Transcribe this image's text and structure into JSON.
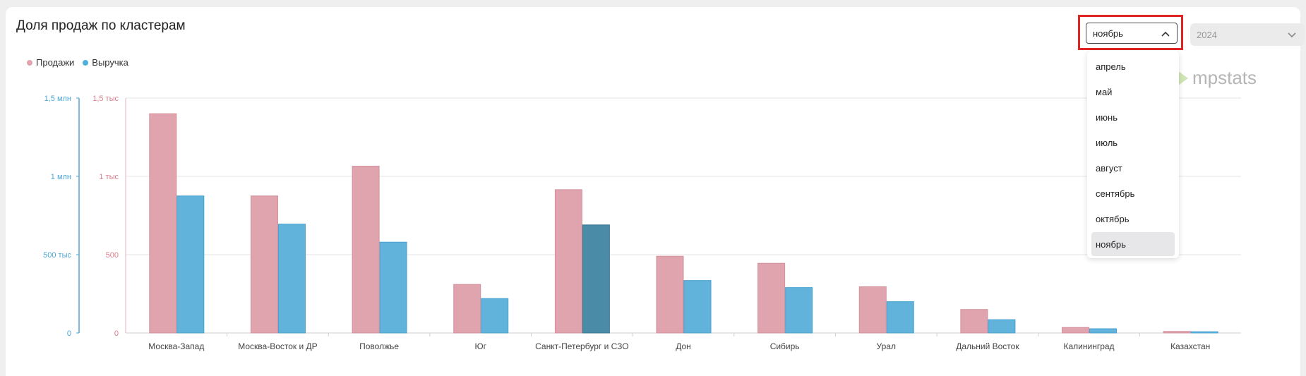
{
  "header": {
    "title": "Доля продаж по кластерам"
  },
  "legend": [
    {
      "label": "Продажи",
      "color": "#e0a4ae"
    },
    {
      "label": "Выручка",
      "color": "#4fb0dc"
    }
  ],
  "logo": {
    "text": "mpstats",
    "icon": "mpstats-logo-icon"
  },
  "filters": {
    "month_value": "ноябрь",
    "year_value": "2024",
    "month_options": [
      "апрель",
      "май",
      "июнь",
      "июль",
      "август",
      "сентябрь",
      "октябрь",
      "ноябрь"
    ],
    "selected_month": "ноябрь"
  },
  "colors": {
    "sales": "#e0a4ae",
    "revenue": "#61b3dc",
    "revenue_highlight": "#4a8ba8",
    "left_axis": "#4fa7d6",
    "right_axis": "#d97e8c",
    "highlight_border": "#e02424"
  },
  "chart_data": {
    "type": "bar",
    "categories": [
      "Москва-Запад",
      "Москва-Восток и ДР",
      "Поволжье",
      "Юг",
      "Санкт-Петербург и СЗО",
      "Дон",
      "Сибирь",
      "Урал",
      "Дальний Восток",
      "Калининград",
      "Казахстан"
    ],
    "series": [
      {
        "name": "Продажи",
        "axis": "sales",
        "values": [
          1400,
          875,
          1065,
          310,
          915,
          490,
          445,
          295,
          150,
          35,
          10
        ]
      },
      {
        "name": "Выручка",
        "axis": "revenue",
        "values": [
          875000,
          695000,
          580000,
          220000,
          690000,
          335000,
          290000,
          200000,
          85000,
          27000,
          8000
        ]
      }
    ],
    "highlighted_category": "Санкт-Петербург и СЗО",
    "axes": {
      "revenue": {
        "ylim": [
          0,
          1500000
        ],
        "ticks": [
          0,
          500000,
          1000000,
          1500000
        ],
        "tick_labels": [
          "0",
          "500 тыс",
          "1 млн",
          "1,5 млн"
        ]
      },
      "sales": {
        "ylim": [
          0,
          1500
        ],
        "ticks": [
          0,
          500,
          1000,
          1500
        ],
        "tick_labels": [
          "0",
          "500",
          "1 тыс",
          "1,5 тыс"
        ]
      }
    },
    "grid": true
  }
}
